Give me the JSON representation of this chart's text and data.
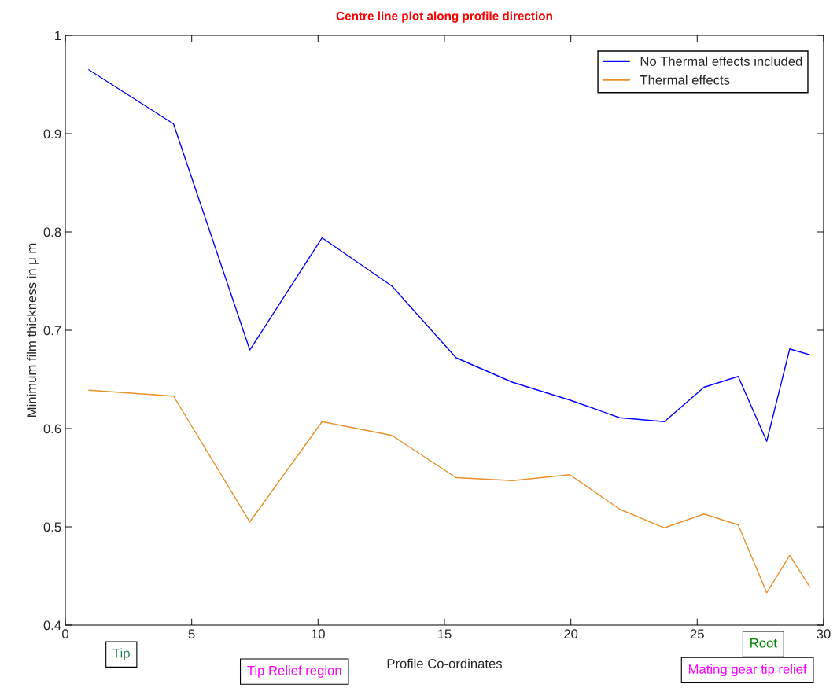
{
  "chart_data": {
    "type": "line",
    "title": "Centre line plot along profile direction",
    "xlabel": "Profile Co-ordinates",
    "ylabel": "Minimum film thickness in μ m",
    "x": [
      0.93,
      4.28,
      7.3,
      10.16,
      12.92,
      15.46,
      17.7,
      19.96,
      21.93,
      23.7,
      25.27,
      26.62,
      27.75,
      28.66,
      29.45
    ],
    "series": [
      {
        "name": "No Thermal effects included",
        "color": "#0000ff",
        "values": [
          0.965,
          0.91,
          0.68,
          0.794,
          0.745,
          0.672,
          0.647,
          0.629,
          0.611,
          0.607,
          0.642,
          0.653,
          0.587,
          0.681,
          0.675
        ]
      },
      {
        "name": "Thermal effects",
        "color": "#e8912a",
        "values": [
          0.639,
          0.633,
          0.505,
          0.607,
          0.593,
          0.55,
          0.547,
          0.553,
          0.518,
          0.499,
          0.513,
          0.502,
          0.433,
          0.471,
          0.439
        ]
      }
    ],
    "xlim": [
      0,
      30
    ],
    "ylim": [
      0.4,
      1
    ],
    "xticks": [
      0,
      5,
      10,
      15,
      20,
      25,
      30
    ],
    "yticks": [
      0.4,
      0.5,
      0.6,
      0.7,
      0.8,
      0.9,
      1
    ],
    "legend": "top right",
    "grid": false,
    "marker": "none",
    "line_style": "solid",
    "annotations": [
      "Tip",
      "Tip Relief region",
      "Root",
      "Mating gear tip relief"
    ]
  }
}
